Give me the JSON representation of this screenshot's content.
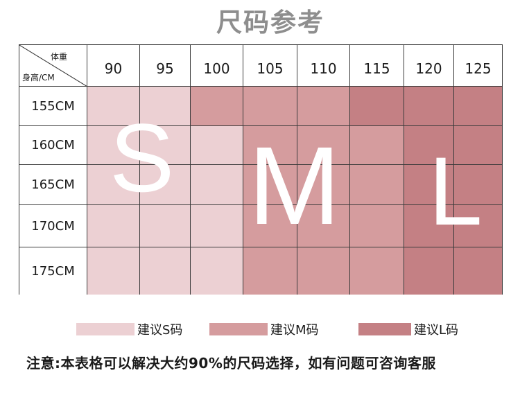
{
  "title": "尺码参考",
  "corner": {
    "weight_label": "体重",
    "height_label": "身高/CM"
  },
  "weights": [
    "90",
    "95",
    "100",
    "105",
    "110",
    "115",
    "120",
    "125"
  ],
  "rows": [
    {
      "height": "155CM",
      "sizes": [
        "S",
        "S",
        "M",
        "M",
        "M",
        "L",
        "L",
        "L"
      ]
    },
    {
      "height": "160CM",
      "sizes": [
        "S",
        "S",
        "S",
        "M",
        "M",
        "M",
        "L",
        "L"
      ]
    },
    {
      "height": "165CM",
      "sizes": [
        "S",
        "S",
        "S",
        "M",
        "M",
        "M",
        "L",
        "L"
      ]
    },
    {
      "height": "170CM",
      "sizes": [
        "S",
        "S",
        "S",
        "M",
        "M",
        "M",
        "L",
        "L"
      ]
    },
    {
      "height": "175CM",
      "sizes": [
        "S",
        "S",
        "S",
        "M",
        "M",
        "M",
        "L",
        "L"
      ]
    }
  ],
  "size_letters": {
    "s": "S",
    "m": "M",
    "l": "L"
  },
  "legend": [
    {
      "size": "S",
      "label": "建议S码",
      "color": "#ecd0d3"
    },
    {
      "size": "M",
      "label": "建议M码",
      "color": "#d59c9e"
    },
    {
      "size": "L",
      "label": "建议L码",
      "color": "#c48084"
    }
  ],
  "note": "注意:本表格可以解决大约90%的尺码选择，如有问题可咨询客服"
}
